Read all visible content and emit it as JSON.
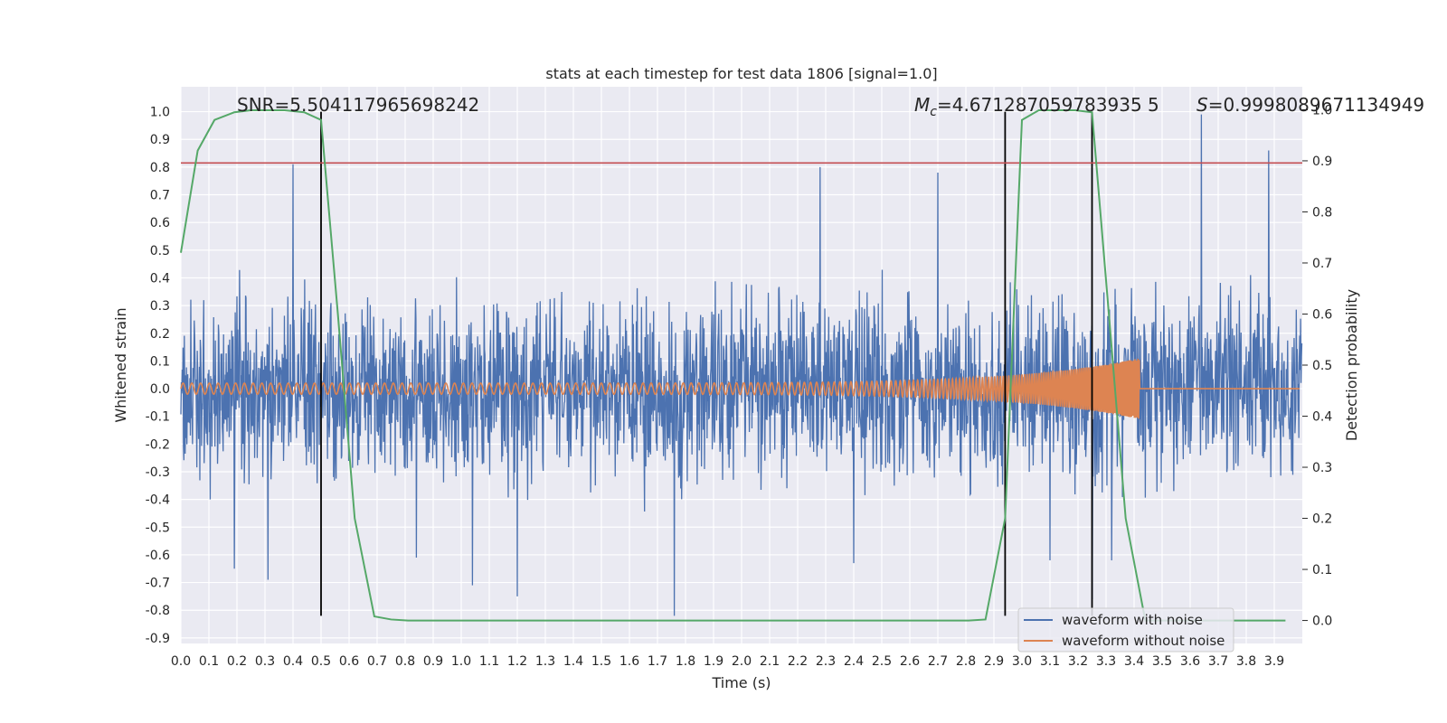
{
  "chart_data": {
    "type": "line",
    "title": "stats at each timestep for test data 1806 [signal=1.0]",
    "xlabel": "Time (s)",
    "ylabel_left": "Whitened strain",
    "ylabel_right": "Detection probability",
    "xlim": [
      0.0,
      4.0
    ],
    "ylim_left": [
      -0.92,
      1.09
    ],
    "ylim_right": [
      -0.045,
      1.045
    ],
    "grid": true,
    "legend_position": "lower-right",
    "x_ticks": [
      "0.0",
      "0.1",
      "0.2",
      "0.3",
      "0.4",
      "0.5",
      "0.6",
      "0.7",
      "0.8",
      "0.9",
      "1.0",
      "1.1",
      "1.2",
      "1.3",
      "1.4",
      "1.5",
      "1.6",
      "1.7",
      "1.8",
      "1.9",
      "2.0",
      "2.1",
      "2.2",
      "2.3",
      "2.4",
      "2.5",
      "2.6",
      "2.7",
      "2.8",
      "2.9",
      "3.0",
      "3.1",
      "3.2",
      "3.3",
      "3.4",
      "3.5",
      "3.6",
      "3.7",
      "3.8",
      "3.9"
    ],
    "y_ticks_left": [
      "1.0",
      "0.9",
      "0.8",
      "0.7",
      "0.6",
      "0.5",
      "0.4",
      "0.3",
      "0.2",
      "0.1",
      "0.0",
      "-0.1",
      "-0.2",
      "-0.3",
      "-0.4",
      "-0.5",
      "-0.6",
      "-0.7",
      "-0.8",
      "-0.9"
    ],
    "y_ticks_right": [
      "1.0",
      "0.9",
      "0.8",
      "0.7",
      "0.6",
      "0.5",
      "0.4",
      "0.3",
      "0.2",
      "0.1",
      "0.0"
    ],
    "annotations": {
      "snr": "SNR=5.504117965698242",
      "mc_symbol": "M",
      "mc_subscript": "c",
      "mc_value": "=4.671287059783935 5",
      "s_symbol": "S",
      "s_value": "=0.9998089671134949"
    },
    "threshold_line": {
      "value_left": 0.815,
      "color": "#c44e52"
    },
    "vertical_markers": [
      {
        "x": 0.5,
        "y_from": -0.82,
        "y_to": 1.0
      },
      {
        "x": 2.94,
        "y_from": -0.82,
        "y_to": 1.0
      },
      {
        "x": 3.25,
        "y_from": -0.82,
        "y_to": 1.0
      }
    ],
    "series": [
      {
        "name": "waveform with noise",
        "color": "#4c72b0",
        "kind": "noise",
        "typical_range": [
          -0.45,
          0.45
        ],
        "spikes": [
          {
            "x": 0.4,
            "y": 0.81
          },
          {
            "x": 0.19,
            "y": -0.65
          },
          {
            "x": 0.31,
            "y": -0.69
          },
          {
            "x": 1.04,
            "y": -0.71
          },
          {
            "x": 1.2,
            "y": -0.75
          },
          {
            "x": 1.76,
            "y": -0.82
          },
          {
            "x": 2.28,
            "y": 0.8
          },
          {
            "x": 2.7,
            "y": 0.78
          },
          {
            "x": 3.25,
            "y": -0.76
          },
          {
            "x": 3.64,
            "y": 0.99
          },
          {
            "x": 3.88,
            "y": 0.86
          },
          {
            "x": 0.84,
            "y": -0.61
          },
          {
            "x": 2.4,
            "y": -0.63
          },
          {
            "x": 3.1,
            "y": -0.62
          },
          {
            "x": 3.32,
            "y": -0.62
          }
        ]
      },
      {
        "name": "waveform without noise",
        "color": "#dd8452",
        "kind": "chirp",
        "start_amplitude": 0.02,
        "peak_amplitude": 0.11,
        "merger_time": 3.42,
        "end_time": 3.99
      },
      {
        "name": "Detection probability",
        "color": "#55a868",
        "axis": "right",
        "x": [
          0.0,
          0.06,
          0.12,
          0.19,
          0.25,
          0.31,
          0.37,
          0.44,
          0.5,
          0.56,
          0.62,
          0.69,
          0.75,
          0.81,
          0.87,
          1.0,
          1.5,
          2.0,
          2.5,
          2.75,
          2.81,
          2.87,
          2.94,
          3.0,
          3.06,
          3.12,
          3.19,
          3.25,
          3.31,
          3.37,
          3.44,
          3.5,
          3.56,
          3.62,
          3.69,
          3.75,
          3.81,
          3.87,
          3.94
        ],
        "y": [
          0.72,
          0.92,
          0.98,
          0.995,
          0.999,
          0.999,
          0.999,
          0.995,
          0.98,
          0.6,
          0.2,
          0.008,
          0.002,
          0.0,
          0.0,
          0.0,
          0.0,
          0.0,
          0.0,
          0.0,
          0.0,
          0.002,
          0.2,
          0.98,
          0.999,
          0.999,
          0.999,
          0.995,
          0.6,
          0.2,
          0.0,
          0.0,
          0.0,
          0.0,
          0.0,
          0.0,
          0.0,
          0.0,
          0.0
        ]
      }
    ]
  }
}
